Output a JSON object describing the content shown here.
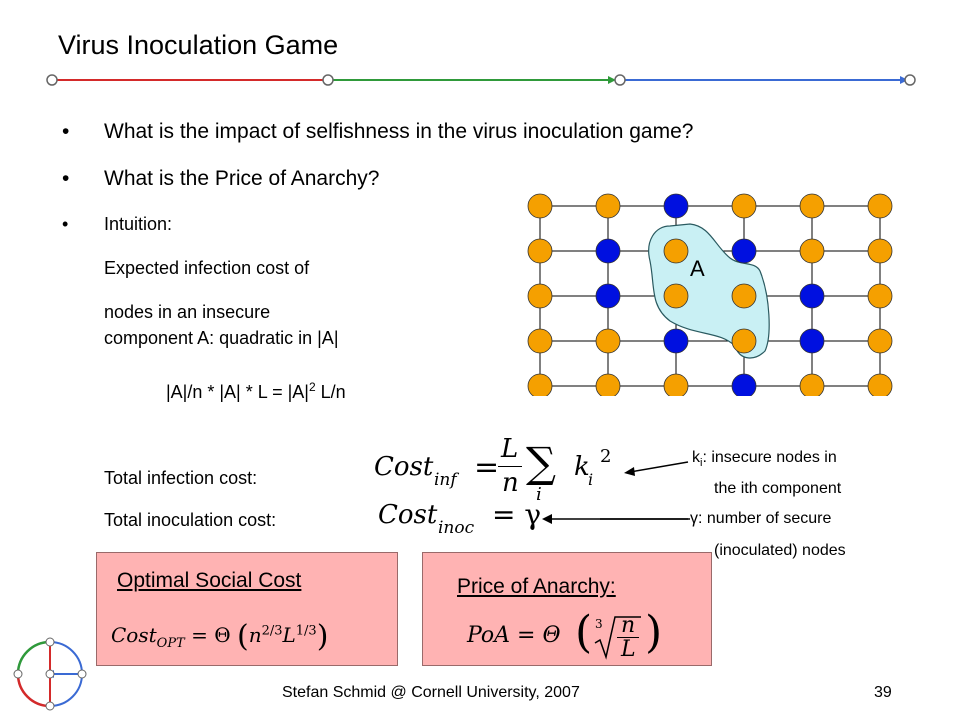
{
  "title": "Virus Inoculation Game",
  "header_rule_colors": [
    "#d42a2a",
    "#2f9a3a",
    "#3a6ad4"
  ],
  "bullets": [
    "What is the impact of selfishness in the virus inoculation game?",
    "What is the Price of Anarchy?",
    "Intuition:"
  ],
  "intuition": {
    "line1": "Expected infection cost of",
    "line2": "nodes in an insecure",
    "line3": "component A: quadratic in |A|",
    "eq_pre": "|A|/n * |A| * L = |A|",
    "eq_sup": "2",
    "eq_post": " L/n"
  },
  "grid": {
    "component_label": "A",
    "node_colors": {
      "insecure": "#f5a000",
      "secure": "#0010e0"
    },
    "layout": [
      "OOBOOO",
      "OBOBOO",
      "OBOOBO",
      "OOBOBO",
      "OOOBOO"
    ]
  },
  "costs": {
    "infection_label": "Total infection cost:",
    "inoculation_label": "Total inoculation cost:",
    "inf_lhs": "Cost",
    "inf_sub": "inf",
    "inf_L": "L",
    "inf_n": "n",
    "inf_sum": "∑",
    "inf_i": "i",
    "inf_k": "k",
    "inf_ki": "i",
    "inf_sq": "2",
    "inoc_lhs": "Cost",
    "inoc_sub": "inoc",
    "inoc_rhs": "= γ"
  },
  "annotations": {
    "ki_label_k": "k",
    "ki_label_i": "i",
    "ki_line1": ": insecure nodes in",
    "ki_line2": "the ith component",
    "gamma_line1": "γ: number of secure",
    "gamma_line2": "(inoculated) nodes"
  },
  "boxes": {
    "optimal_title": "Optimal Social Cost",
    "opt_lhs": "Cost",
    "opt_sub": "OPT",
    "opt_rhs": "= Θ",
    "opt_n": "n",
    "opt_nexp": "2/3",
    "opt_L": "L",
    "opt_Lexp": "1/3",
    "poa_title": "Price of Anarchy:",
    "poa_lhs": "PoA = Θ",
    "poa_root": "3",
    "poa_num": "n",
    "poa_den": "L"
  },
  "footer": {
    "center": "Stefan Schmid @ Cornell University, 2007",
    "page": "39"
  }
}
